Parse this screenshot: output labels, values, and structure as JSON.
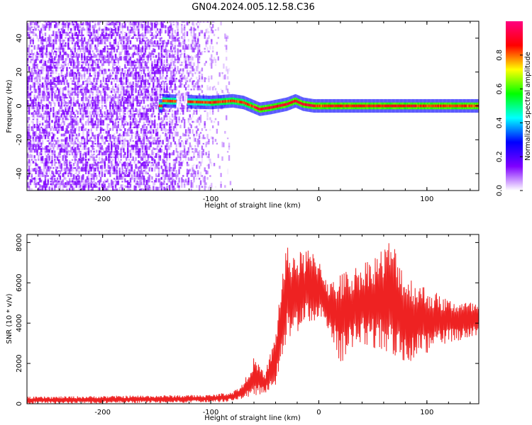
{
  "title": "GN04.2024.005.12.58.C36",
  "chart_data": [
    {
      "type": "heatmap",
      "name": "spectrogram",
      "xlabel": "Height of straight line (km)",
      "ylabel": "Frequency (Hz)",
      "xlim": [
        -270,
        148
      ],
      "ylim": [
        -50,
        50
      ],
      "x_ticks": [
        -200,
        -100,
        0,
        100
      ],
      "y_ticks": [
        -40,
        -20,
        0,
        20,
        40
      ],
      "noise_region_x": [
        -270,
        -82
      ],
      "signal_start_x": -148,
      "signal_ridge": [
        {
          "x": -145,
          "y": 3
        },
        {
          "x": -100,
          "y": 2
        },
        {
          "x": -80,
          "y": 3
        },
        {
          "x": -70,
          "y": 2
        },
        {
          "x": -55,
          "y": -2
        },
        {
          "x": -45,
          "y": -1
        },
        {
          "x": -30,
          "y": 1
        },
        {
          "x": -22,
          "y": 3
        },
        {
          "x": -15,
          "y": 1
        },
        {
          "x": -5,
          "y": 0
        },
        {
          "x": 148,
          "y": 0
        }
      ],
      "colorbar": {
        "label": "Normalized spectral amplitude",
        "range": [
          0,
          1
        ],
        "ticks": [
          0.0,
          0.2,
          0.4,
          0.6,
          0.8
        ],
        "tick_labels": [
          "0.0",
          "0.2",
          "0.4",
          "0.6",
          "0.8"
        ],
        "colormap": [
          "#ffffff",
          "#7f00ff",
          "#0000ff",
          "#00ffff",
          "#00ff00",
          "#ffff00",
          "#ff0000",
          "#ff0080"
        ]
      },
      "colors": {
        "noise": "#7f00ff"
      }
    },
    {
      "type": "line",
      "name": "snr",
      "xlabel": "Height of straight line (km)",
      "ylabel": "SNR (10 * v/v)",
      "xlim": [
        -270,
        148
      ],
      "ylim": [
        0,
        8400
      ],
      "x_ticks": [
        -200,
        -100,
        0,
        100
      ],
      "y_ticks": [
        0,
        2000,
        4000,
        6000,
        8000
      ],
      "envelope": [
        {
          "x": -270,
          "low": 0,
          "high": 350
        },
        {
          "x": -100,
          "low": 50,
          "high": 450
        },
        {
          "x": -80,
          "low": 100,
          "high": 600
        },
        {
          "x": -70,
          "low": 200,
          "high": 1000
        },
        {
          "x": -60,
          "low": 400,
          "high": 2300
        },
        {
          "x": -50,
          "low": 500,
          "high": 1500
        },
        {
          "x": -40,
          "low": 800,
          "high": 3500
        },
        {
          "x": -35,
          "low": 2000,
          "high": 6200
        },
        {
          "x": -30,
          "low": 3000,
          "high": 7800
        },
        {
          "x": -20,
          "low": 3500,
          "high": 7500
        },
        {
          "x": -10,
          "low": 3800,
          "high": 7700
        },
        {
          "x": 0,
          "low": 4300,
          "high": 7300
        },
        {
          "x": 10,
          "low": 3500,
          "high": 6000
        },
        {
          "x": 20,
          "low": 2000,
          "high": 6500
        },
        {
          "x": 40,
          "low": 3000,
          "high": 7000
        },
        {
          "x": 60,
          "low": 2500,
          "high": 7800
        },
        {
          "x": 67,
          "low": 2500,
          "high": 8300
        },
        {
          "x": 80,
          "low": 2000,
          "high": 6500
        },
        {
          "x": 100,
          "low": 2500,
          "high": 5800
        },
        {
          "x": 120,
          "low": 3000,
          "high": 5200
        },
        {
          "x": 148,
          "low": 3300,
          "high": 5000
        }
      ],
      "colors": {
        "line": "#ee2222"
      }
    }
  ]
}
